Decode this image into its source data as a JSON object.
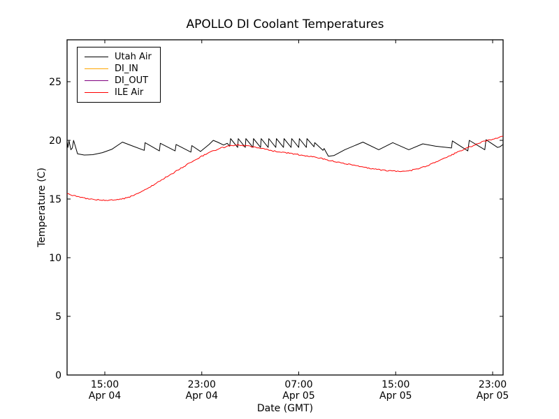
{
  "chart_data": {
    "type": "line",
    "title": "APOLLO DI Coolant Temperatures",
    "xlabel": "Date (GMT)",
    "ylabel": "Temperature (C)",
    "x_unit": "hours since Apr 04 00:00 GMT",
    "xlim": [
      11.886,
      47.863
    ],
    "ylim": [
      0,
      28.57
    ],
    "grid": false,
    "legend_position": "upper left",
    "xticks": [
      {
        "t": 15,
        "time": "15:00",
        "date": "Apr 04"
      },
      {
        "t": 23,
        "time": "23:00",
        "date": "Apr 04"
      },
      {
        "t": 31,
        "time": "07:00",
        "date": "Apr 05"
      },
      {
        "t": 39,
        "time": "15:00",
        "date": "Apr 05"
      },
      {
        "t": 47,
        "time": "23:00",
        "date": "Apr 05"
      }
    ],
    "yticks": [
      0,
      5,
      10,
      15,
      20,
      25
    ],
    "series": [
      {
        "name": "Utah Air",
        "color": "#000000",
        "noise": false,
        "points": [
          [
            11.89,
            19.9
          ],
          [
            11.95,
            19.4
          ],
          [
            12.05,
            19.95
          ],
          [
            12.2,
            19.2
          ],
          [
            12.32,
            19.35
          ],
          [
            12.42,
            20.0
          ],
          [
            12.75,
            18.85
          ],
          [
            13.3,
            18.75
          ],
          [
            14.0,
            18.78
          ],
          [
            14.8,
            18.95
          ],
          [
            15.6,
            19.25
          ],
          [
            16.45,
            19.85
          ],
          [
            17.2,
            19.55
          ],
          [
            18.25,
            19.15
          ],
          [
            18.32,
            19.8
          ],
          [
            19.5,
            19.1
          ],
          [
            19.58,
            19.75
          ],
          [
            20.8,
            19.1
          ],
          [
            20.88,
            19.65
          ],
          [
            22.1,
            19.0
          ],
          [
            22.18,
            19.55
          ],
          [
            22.9,
            19.05
          ],
          [
            23.6,
            19.65
          ],
          [
            23.95,
            20.0
          ],
          [
            24.3,
            19.85
          ],
          [
            24.8,
            19.6
          ],
          [
            25.1,
            19.75
          ],
          [
            25.3,
            19.5
          ],
          [
            25.38,
            20.15
          ],
          [
            25.96,
            19.4
          ],
          [
            26.01,
            20.15
          ],
          [
            26.59,
            19.4
          ],
          [
            26.64,
            20.15
          ],
          [
            27.22,
            19.4
          ],
          [
            27.27,
            20.15
          ],
          [
            27.85,
            19.4
          ],
          [
            27.9,
            20.15
          ],
          [
            28.48,
            19.4
          ],
          [
            28.53,
            20.15
          ],
          [
            29.11,
            19.4
          ],
          [
            29.16,
            20.15
          ],
          [
            29.74,
            19.4
          ],
          [
            29.79,
            20.15
          ],
          [
            30.37,
            19.4
          ],
          [
            30.42,
            20.15
          ],
          [
            31.0,
            19.4
          ],
          [
            31.05,
            20.15
          ],
          [
            31.63,
            19.4
          ],
          [
            31.68,
            20.15
          ],
          [
            32.26,
            19.45
          ],
          [
            32.32,
            19.8
          ],
          [
            33.0,
            19.15
          ],
          [
            33.1,
            19.3
          ],
          [
            33.45,
            18.65
          ],
          [
            33.9,
            18.7
          ],
          [
            34.8,
            19.2
          ],
          [
            36.3,
            19.85
          ],
          [
            37.6,
            19.2
          ],
          [
            38.76,
            19.8
          ],
          [
            40.08,
            19.2
          ],
          [
            41.24,
            19.7
          ],
          [
            42.3,
            19.5
          ],
          [
            43.6,
            19.35
          ],
          [
            43.68,
            19.95
          ],
          [
            44.95,
            19.1
          ],
          [
            45.07,
            20.0
          ],
          [
            46.35,
            19.2
          ],
          [
            46.45,
            20.05
          ],
          [
            47.4,
            19.4
          ],
          [
            47.6,
            19.45
          ],
          [
            47.86,
            19.65
          ]
        ]
      },
      {
        "name": "DI_IN",
        "color": "#ffa500",
        "noise": false,
        "points": []
      },
      {
        "name": "DI_OUT",
        "color": "#800080",
        "noise": false,
        "points": []
      },
      {
        "name": "ILE Air",
        "color": "#ff0000",
        "noise": true,
        "points": [
          [
            11.89,
            15.45
          ],
          [
            13.0,
            15.15
          ],
          [
            14.0,
            14.95
          ],
          [
            15.0,
            14.9
          ],
          [
            15.8,
            14.9
          ],
          [
            16.6,
            15.05
          ],
          [
            17.4,
            15.3
          ],
          [
            18.2,
            15.7
          ],
          [
            19.0,
            16.2
          ],
          [
            19.8,
            16.7
          ],
          [
            20.6,
            17.2
          ],
          [
            21.4,
            17.7
          ],
          [
            22.2,
            18.2
          ],
          [
            23.0,
            18.65
          ],
          [
            23.8,
            19.05
          ],
          [
            24.6,
            19.35
          ],
          [
            25.4,
            19.55
          ],
          [
            26.1,
            19.6
          ],
          [
            26.9,
            19.5
          ],
          [
            27.9,
            19.3
          ],
          [
            28.9,
            19.1
          ],
          [
            29.9,
            18.95
          ],
          [
            30.9,
            18.8
          ],
          [
            31.9,
            18.65
          ],
          [
            32.9,
            18.45
          ],
          [
            33.9,
            18.2
          ],
          [
            34.9,
            18.0
          ],
          [
            35.9,
            17.8
          ],
          [
            36.9,
            17.6
          ],
          [
            37.9,
            17.45
          ],
          [
            38.7,
            17.38
          ],
          [
            39.5,
            17.35
          ],
          [
            40.3,
            17.45
          ],
          [
            41.1,
            17.65
          ],
          [
            42.1,
            18.05
          ],
          [
            43.1,
            18.5
          ],
          [
            44.1,
            19.0
          ],
          [
            45.1,
            19.45
          ],
          [
            46.1,
            19.85
          ],
          [
            47.0,
            20.1
          ],
          [
            47.86,
            20.35
          ]
        ]
      }
    ]
  }
}
